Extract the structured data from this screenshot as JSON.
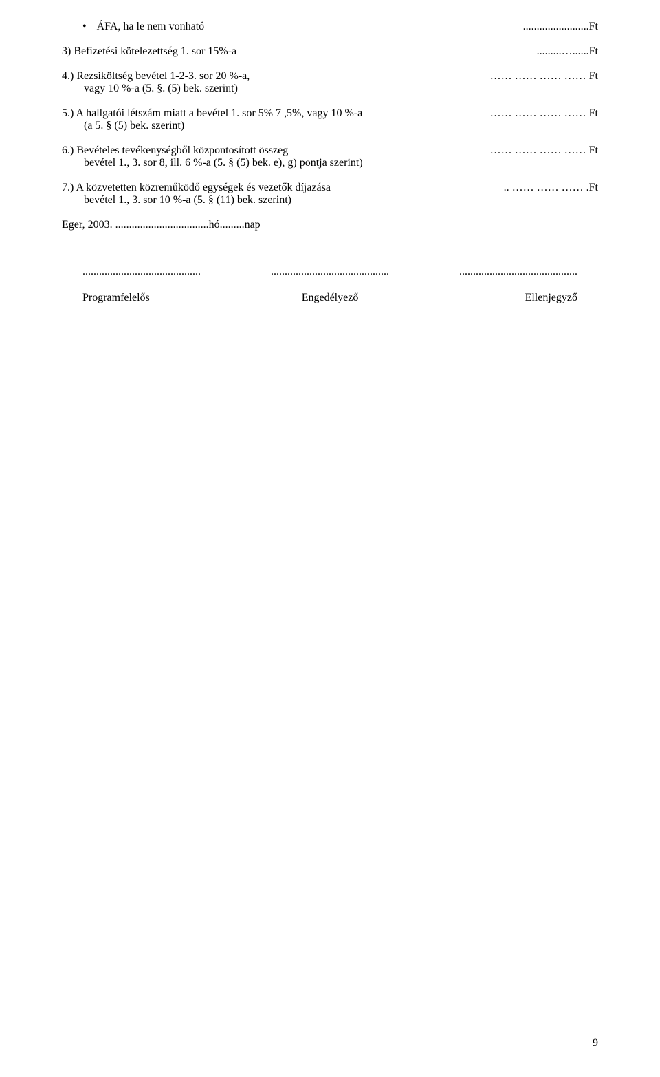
{
  "bullet": {
    "label": "ÁFA, ha le nem vonható",
    "value": "........................Ft"
  },
  "items": [
    {
      "main": "3) Befizetési kötelezettség 1. sor  15%-a",
      "value": ".........…......Ft",
      "sub": ""
    },
    {
      "main": "4.) Rezsiköltség bevétel  1-2-3. sor 20 %-a,",
      "sub": "vagy 10 %-a (5. §. (5) bek. szerint)",
      "value": "…… …… …… …… Ft"
    },
    {
      "main": "5.) A hallgatói létszám miatt a bevétel  1. sor 5% 7 ,5%, vagy 10 %-a",
      "sub": "(a 5. § (5) bek. szerint)",
      "value": "…… …… …… …… Ft"
    },
    {
      "main": "6.) Bevételes tevékenységből központosított összeg",
      "sub": "bevétel 1., 3. sor 8, ill. 6 %-a  (5. § (5) bek. e), g) pontja szerint)",
      "value": "…… …… …… …… Ft"
    },
    {
      "main": "7.) A közvetetten közreműködő egységek és vezetők díjazása",
      "sub": "bevétel 1., 3. sor 10 %-a  (5. § (11) bek. szerint)",
      "value": ".. …… …… …… .Ft"
    }
  ],
  "dateline": "Eger, 2003. ..................................hó.........nap",
  "signatures": {
    "dots1": "...........................................",
    "dots2": "...........................................",
    "dots3": "...........................................",
    "label1": "Programfelelős",
    "label2": "Engedélyező",
    "label3": "Ellenjegyző"
  },
  "pageNumber": "9"
}
